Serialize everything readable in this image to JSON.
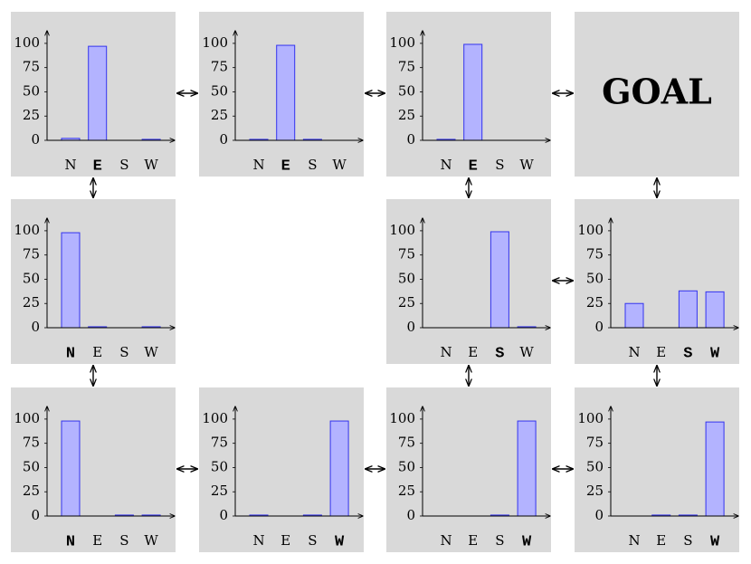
{
  "goal": "GOAL",
  "chart_data": [
    {
      "type": "bar",
      "categories": [
        "N",
        "E",
        "S",
        "W"
      ],
      "values": [
        2,
        97,
        0,
        1
      ],
      "highlight": [
        1
      ],
      "color": "#b3b3ff",
      "ylim": [
        0,
        110
      ],
      "yticks": [
        0,
        25,
        50,
        75,
        100
      ]
    },
    {
      "type": "bar",
      "categories": [
        "N",
        "E",
        "S",
        "W"
      ],
      "values": [
        1,
        98,
        1,
        0
      ],
      "highlight": [
        1
      ],
      "color": "#b3b3ff",
      "ylim": [
        0,
        110
      ],
      "yticks": [
        0,
        25,
        50,
        75,
        100
      ]
    },
    {
      "type": "bar",
      "categories": [
        "N",
        "E",
        "S",
        "W"
      ],
      "values": [
        1,
        99,
        0,
        0
      ],
      "highlight": [
        1
      ],
      "color": "#b3b3ff",
      "ylim": [
        0,
        110
      ],
      "yticks": [
        0,
        25,
        50,
        75,
        100
      ]
    },
    {
      "type": "bar",
      "categories": [
        "N",
        "E",
        "S",
        "W"
      ],
      "values": [
        98,
        1,
        0,
        1
      ],
      "highlight": [
        0
      ],
      "color": "#b3b3ff",
      "ylim": [
        0,
        110
      ],
      "yticks": [
        0,
        25,
        50,
        75,
        100
      ]
    },
    {
      "type": "bar",
      "categories": [
        "N",
        "E",
        "S",
        "W"
      ],
      "values": [
        0,
        0,
        99,
        1
      ],
      "highlight": [
        2
      ],
      "color": "#b3b3ff",
      "ylim": [
        0,
        110
      ],
      "yticks": [
        0,
        25,
        50,
        75,
        100
      ]
    },
    {
      "type": "bar",
      "categories": [
        "N",
        "E",
        "S",
        "W"
      ],
      "values": [
        25,
        0,
        38,
        37
      ],
      "highlight": [
        2,
        3
      ],
      "color": "#b3b3ff",
      "ylim": [
        0,
        110
      ],
      "yticks": [
        0,
        25,
        50,
        75,
        100
      ]
    },
    {
      "type": "bar",
      "categories": [
        "N",
        "E",
        "S",
        "W"
      ],
      "values": [
        98,
        0,
        1,
        1
      ],
      "highlight": [
        0
      ],
      "color": "#b3b3ff",
      "ylim": [
        0,
        110
      ],
      "yticks": [
        0,
        25,
        50,
        75,
        100
      ]
    },
    {
      "type": "bar",
      "categories": [
        "N",
        "E",
        "S",
        "W"
      ],
      "values": [
        1,
        0,
        1,
        98
      ],
      "highlight": [
        3
      ],
      "color": "#b3b3ff",
      "ylim": [
        0,
        110
      ],
      "yticks": [
        0,
        25,
        50,
        75,
        100
      ]
    },
    {
      "type": "bar",
      "categories": [
        "N",
        "E",
        "S",
        "W"
      ],
      "values": [
        0,
        0,
        1,
        98
      ],
      "highlight": [
        3
      ],
      "color": "#b3b3ff",
      "ylim": [
        0,
        110
      ],
      "yticks": [
        0,
        25,
        50,
        75,
        100
      ]
    },
    {
      "type": "bar",
      "categories": [
        "N",
        "E",
        "S",
        "W"
      ],
      "values": [
        0,
        1,
        1,
        97
      ],
      "highlight": [
        3
      ],
      "color": "#b3b3ff",
      "ylim": [
        0,
        110
      ],
      "yticks": [
        0,
        25,
        50,
        75,
        100
      ]
    }
  ]
}
